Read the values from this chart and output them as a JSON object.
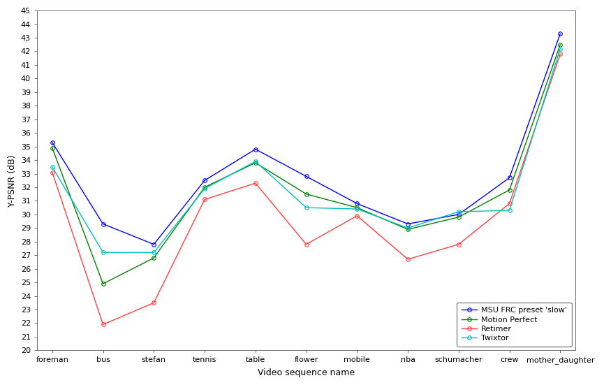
{
  "categories": [
    "foreman",
    "bus",
    "stefan",
    "tennis",
    "table",
    "flower",
    "mobile",
    "nba",
    "schumacher",
    "crew",
    "mother_daughter"
  ],
  "series": [
    {
      "label": "MSU FRC preset 'slow'",
      "color": "#0000ff",
      "values": [
        35.3,
        29.3,
        27.8,
        32.5,
        34.8,
        32.8,
        30.8,
        29.3,
        30.0,
        32.7,
        43.3
      ]
    },
    {
      "label": "Motion Perfect",
      "color": "#008000",
      "values": [
        34.9,
        24.9,
        26.8,
        32.0,
        33.8,
        31.5,
        30.5,
        28.9,
        29.8,
        31.8,
        42.5
      ]
    },
    {
      "label": "Retimer",
      "color": "#ff4040",
      "values": [
        33.1,
        21.9,
        23.5,
        31.1,
        32.3,
        27.8,
        29.9,
        26.7,
        27.8,
        30.8,
        41.8
      ]
    },
    {
      "label": "Twixtor",
      "color": "#00bfbf",
      "values": [
        33.5,
        27.2,
        27.2,
        31.9,
        33.9,
        30.5,
        30.4,
        29.0,
        30.2,
        30.3,
        42.2
      ]
    }
  ],
  "xlabel": "Video sequence name",
  "ylabel": "Y-PSNR (dB)",
  "ylim": [
    20,
    45
  ],
  "yticks": [
    20,
    21,
    22,
    23,
    24,
    25,
    26,
    27,
    28,
    29,
    30,
    31,
    32,
    33,
    34,
    35,
    36,
    37,
    38,
    39,
    40,
    41,
    42,
    43,
    44,
    45
  ],
  "legend_loc": "lower right",
  "marker": "o",
  "marker_size": 4,
  "linewidth": 1.0,
  "bg_color": "#ffffff",
  "tick_color": "#555555",
  "spine_color": "#555555",
  "label_fontsize": 9,
  "tick_fontsize": 8,
  "legend_fontsize": 8
}
